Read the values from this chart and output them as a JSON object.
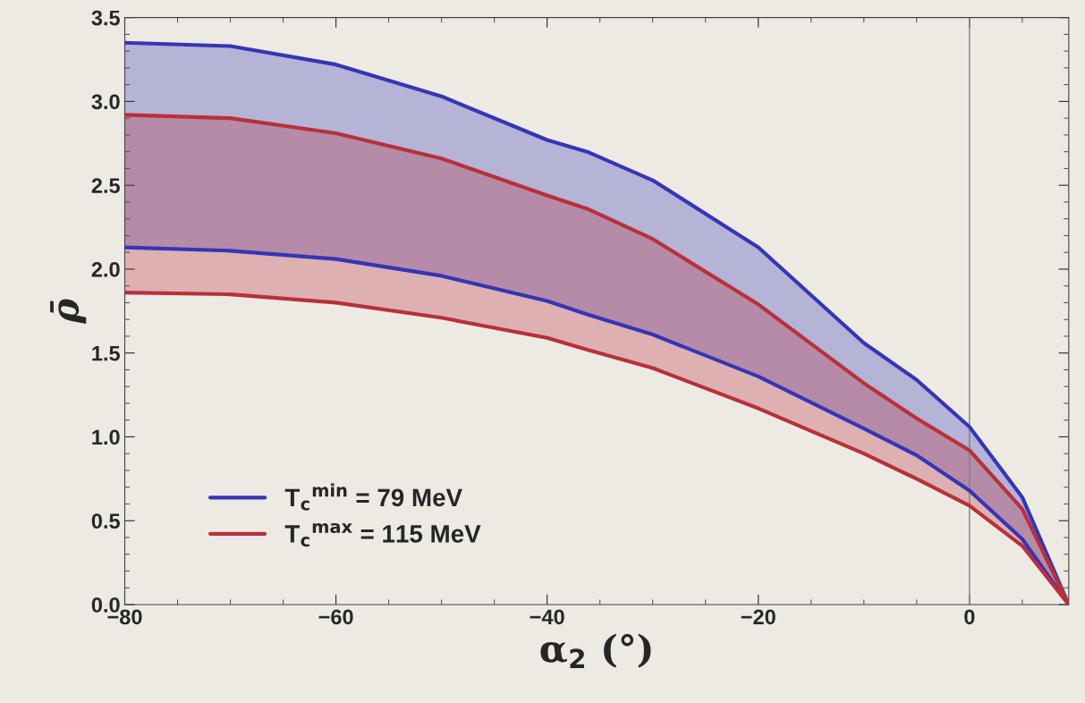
{
  "chart_data": {
    "type": "line",
    "xlabel": "α$_{2}$ (°)",
    "ylabel": "ρ̄",
    "xlim": [
      -80,
      9.4
    ],
    "ylim": [
      0,
      3.5
    ],
    "xticks": [
      {
        "value": -80,
        "label": "−80"
      },
      {
        "value": -60,
        "label": "−60"
      },
      {
        "value": -40,
        "label": "−40"
      },
      {
        "value": -20,
        "label": "−20"
      },
      0
    ],
    "yticks": [
      {
        "value": 0,
        "label": "0.0"
      },
      {
        "value": 0.5,
        "label": "0.5"
      },
      {
        "value": 1,
        "label": "1.0"
      },
      {
        "value": 1.5,
        "label": "1.5"
      },
      {
        "value": 2,
        "label": "2.0"
      },
      {
        "value": 2.5,
        "label": "2.5"
      },
      {
        "value": 3,
        "label": "3.0"
      },
      {
        "value": 3.5,
        "label": "3.5"
      }
    ],
    "x": [
      -80,
      -70,
      -60,
      -50,
      -40,
      -36.2,
      -30,
      -20,
      -10,
      -5,
      0,
      5,
      9.4
    ],
    "series": [
      {
        "name": "T$_{c}$$^{min}$ = 79 MeV",
        "color": "#3535b5",
        "values": [
          3.35,
          3.33,
          3.22,
          3.03,
          2.77,
          2.7,
          2.53,
          2.13,
          1.56,
          1.34,
          1.06,
          0.64,
          0
        ],
        "lower": [
          2.13,
          2.11,
          2.06,
          1.96,
          1.81,
          1.73,
          1.61,
          1.36,
          1.05,
          0.89,
          0.68,
          0.39,
          0
        ],
        "upper": [
          3.35,
          3.33,
          3.22,
          3.03,
          2.77,
          2.7,
          2.53,
          2.13,
          1.56,
          1.34,
          1.06,
          0.64,
          0
        ]
      },
      {
        "color": "#3535b5",
        "values": [
          2.13,
          2.11,
          2.06,
          1.96,
          1.81,
          1.73,
          1.61,
          1.36,
          1.05,
          0.89,
          0.68,
          0.39,
          0
        ]
      },
      {
        "name": "T$_{c}$$^{max}$ = 115 MeV",
        "color": "#b8303a",
        "values": [
          2.92,
          2.9,
          2.81,
          2.66,
          2.44,
          2.36,
          2.18,
          1.79,
          1.32,
          1.11,
          0.92,
          0.57,
          0
        ],
        "lower": [
          1.86,
          1.85,
          1.8,
          1.71,
          1.59,
          1.52,
          1.41,
          1.17,
          0.9,
          0.75,
          0.59,
          0.35,
          0
        ],
        "upper": [
          2.92,
          2.9,
          2.81,
          2.66,
          2.44,
          2.36,
          2.18,
          1.79,
          1.32,
          1.11,
          0.92,
          0.57,
          0
        ]
      },
      {
        "color": "#b8303a",
        "values": [
          1.86,
          1.85,
          1.8,
          1.71,
          1.59,
          1.52,
          1.41,
          1.17,
          0.9,
          0.75,
          0.59,
          0.35,
          0
        ]
      }
    ],
    "ref_lines": [
      {
        "axis": "x",
        "value": 0,
        "color": "#808080"
      }
    ],
    "legend": "bottom left",
    "grid": false
  }
}
